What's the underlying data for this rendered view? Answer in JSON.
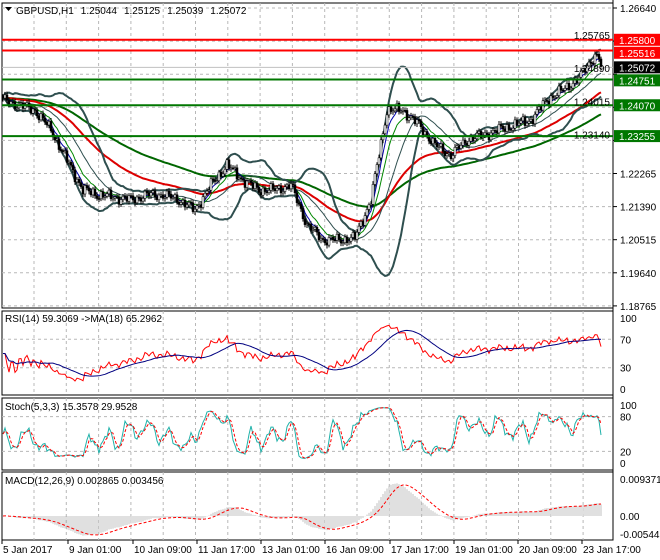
{
  "header": {
    "symbol": "GBPUSD,H1",
    "open": "1.25044",
    "high": "1.25125",
    "low": "1.25039",
    "close": "1.25072"
  },
  "colors": {
    "support_line": "#007700",
    "resistance_line": "#ff0000",
    "bid_tag": "#000000",
    "ma_fast": "#0000aa",
    "ma_mid": "#008800",
    "ma_slow": "#dd0000",
    "ma_long": "#006600",
    "bollinger": "#2f4f4f",
    "rsi": "#ff0000",
    "rsi_ma": "#000080",
    "stoch_main": "#20b2aa",
    "stoch_signal": "#ff0000",
    "macd_hist": "#c0c0c0",
    "macd_signal": "#ff0000"
  },
  "chart_data": [
    {
      "type": "candlestick",
      "title": "GBPUSD,H1",
      "timeframe_hours_per_sample": 8,
      "x_tick_labels": [
        "5 Jan 2017",
        "9 Jan 01:00",
        "10 Jan 09:00",
        "11 Jan 17:00",
        "13 Jan 01:00",
        "16 Jan 09:00",
        "17 Jan 17:00",
        "19 Jan 01:00",
        "20 Jan 09:00",
        "23 Jan 17:00"
      ],
      "y_tick_labels": [
        "1.26640",
        "1.25765",
        "1.24890",
        "1.24015",
        "1.23140",
        "1.22265",
        "1.21390",
        "1.20515",
        "1.19640",
        "1.18765"
      ],
      "ylim": [
        1.18765,
        1.2664
      ],
      "close_samples": [
        1.2421,
        1.2408,
        1.2394,
        1.2342,
        1.2262,
        1.2183,
        1.217,
        1.2164,
        1.2157,
        1.217,
        1.217,
        1.2157,
        1.213,
        1.2196,
        1.2249,
        1.2209,
        1.2183,
        1.2183,
        1.2196,
        1.2091,
        1.2051,
        1.2051,
        1.2056,
        1.2157,
        1.2394,
        1.2394,
        1.2355,
        1.2302,
        1.2275,
        1.2315,
        1.2328,
        1.2342,
        1.2355,
        1.2368,
        1.2421,
        1.2447,
        1.2479,
        1.254,
        1.25072
      ],
      "horizontal_levels": [
        {
          "label": "1.25800",
          "kind": "resistance"
        },
        {
          "label": "1.25516",
          "kind": "resistance"
        },
        {
          "label": "1.24751",
          "kind": "support"
        },
        {
          "label": "1.24070",
          "kind": "support"
        },
        {
          "label": "1.23255",
          "kind": "support"
        }
      ],
      "bid_label": "1.25072"
    },
    {
      "type": "line",
      "title": "RSI(14) 59.3069  ->MA(18) 65.2962",
      "ylim": [
        0,
        100
      ],
      "y_tick_labels": [
        "100",
        "70",
        "30",
        "0"
      ],
      "last_values": {
        "rsi": 59.3069,
        "ma": 65.2962
      }
    },
    {
      "type": "line",
      "title": "Stoch(5,3,3) 15.3578 29.9528",
      "ylim": [
        0,
        100
      ],
      "y_tick_labels": [
        "100",
        "80",
        "20",
        "0"
      ],
      "last_values": {
        "main": 15.3578,
        "signal": 29.9528
      }
    },
    {
      "type": "bar",
      "title": "MACD(12,26,9) 0.002865 0.003456",
      "ylim": [
        -0.005445,
        0.009371
      ],
      "y_tick_labels": [
        "0.009371",
        "0.00",
        "-0.005445"
      ],
      "last_values": {
        "macd": 0.002865,
        "signal": 0.003456
      }
    }
  ]
}
